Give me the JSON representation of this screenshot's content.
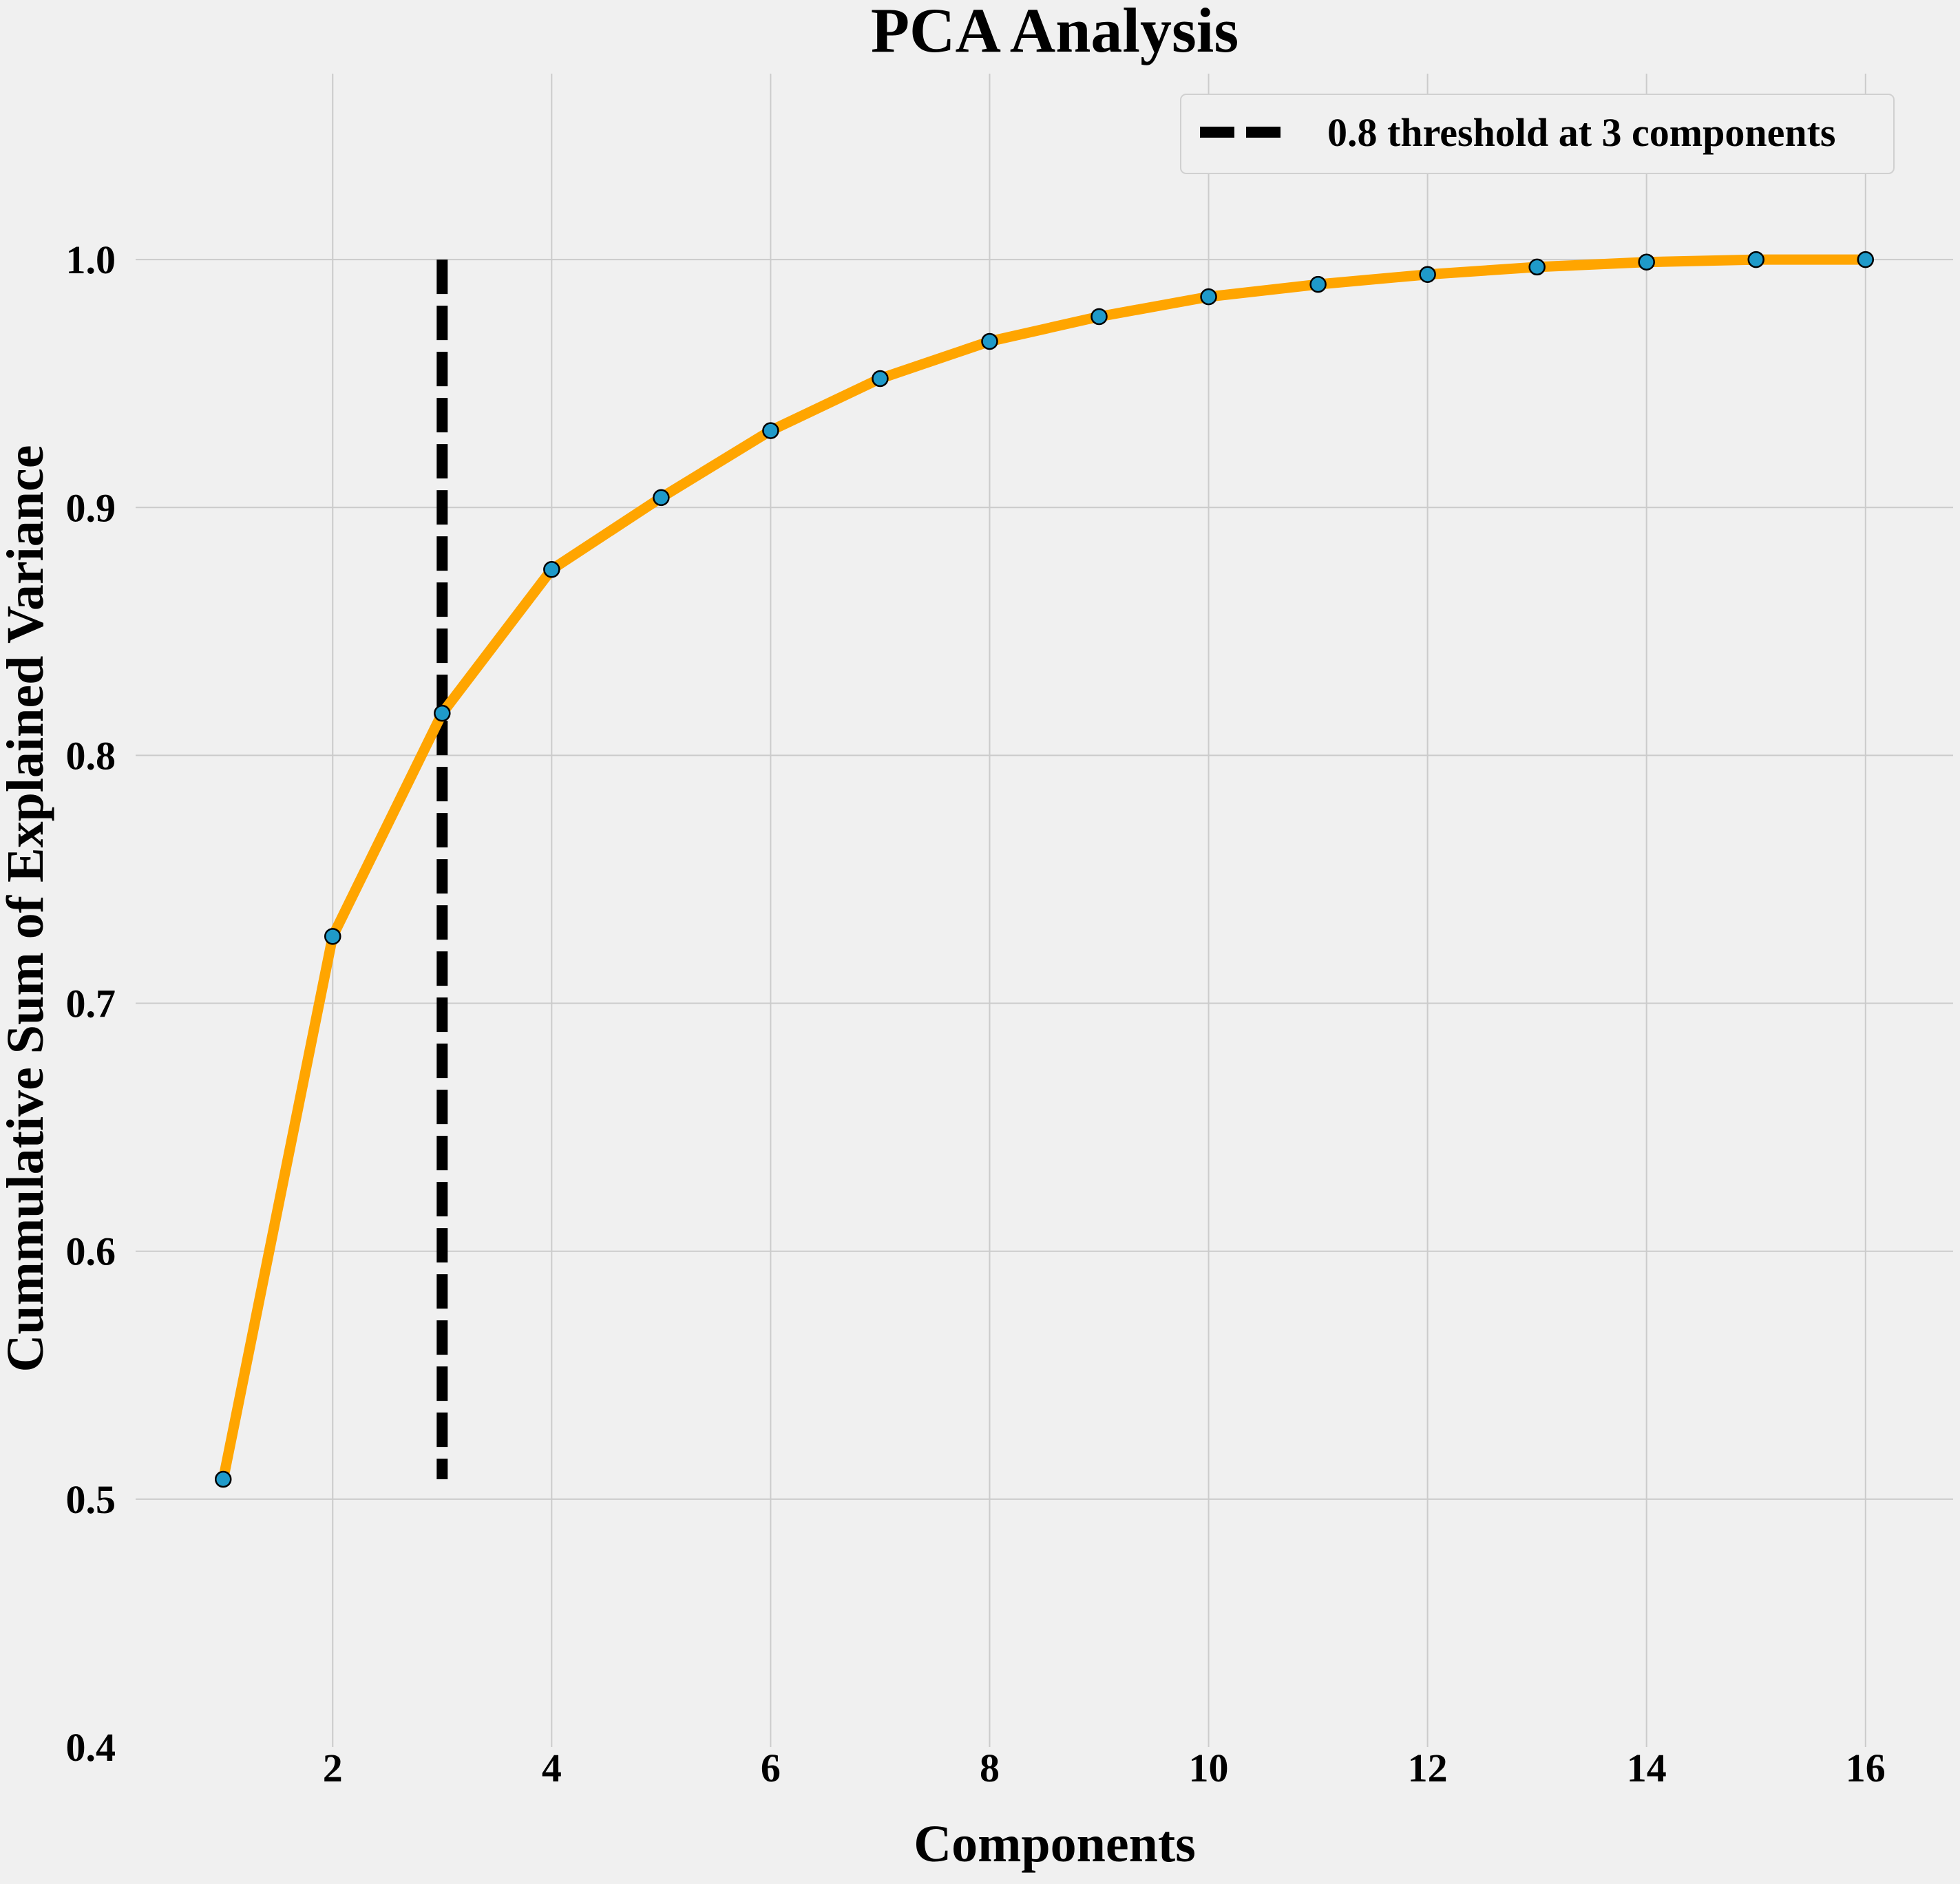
{
  "chart_data": {
    "type": "line",
    "title": "PCA Analysis",
    "xlabel": "Components",
    "ylabel": "Cummulative Sum of Explained Variance",
    "x": [
      1,
      2,
      3,
      4,
      5,
      6,
      7,
      8,
      9,
      10,
      11,
      12,
      13,
      14,
      15,
      16
    ],
    "x_ticks": [
      2,
      4,
      6,
      8,
      10,
      12,
      14,
      16
    ],
    "y_ticks": [
      "0.4",
      "0.5",
      "0.6",
      "0.7",
      "0.8",
      "0.9",
      "1.0"
    ],
    "xlim": [
      0.2,
      16.8
    ],
    "ylim": [
      0.4,
      1.075
    ],
    "grid": true,
    "legend_position": "top-right",
    "series": [
      {
        "values": [
          0.508,
          0.727,
          0.817,
          0.875,
          0.904,
          0.931,
          0.952,
          0.967,
          0.977,
          0.985,
          0.99,
          0.994,
          0.997,
          0.999,
          1.0,
          1.0
        ],
        "line_color": "#ffa500",
        "marker_color": "#1f9ac9",
        "marker_edge_color": "#000000"
      }
    ],
    "threshold_line": {
      "label": "0.8 threshold at 3 components",
      "x": 3,
      "y_range": [
        0.508,
        1.0
      ],
      "color": "#000000",
      "style": "dashed"
    }
  }
}
